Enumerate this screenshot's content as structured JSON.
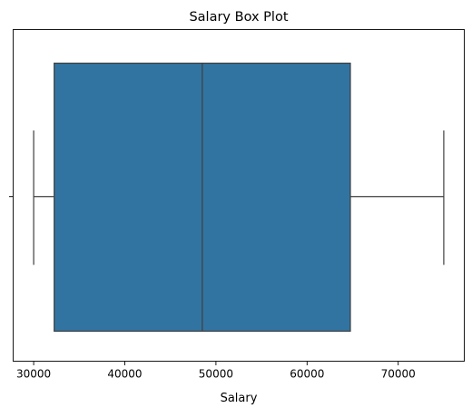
{
  "chart_data": {
    "type": "box",
    "title": "Salary Box Plot",
    "xlabel": "Salary",
    "ylabel": "",
    "orientation": "horizontal",
    "xlim": [
      27750,
      77250
    ],
    "xticks": [
      30000,
      40000,
      50000,
      60000,
      70000
    ],
    "tick_labels": [
      "30000",
      "40000",
      "50000",
      "60000",
      "70000"
    ],
    "series": [
      {
        "name": "Salary",
        "whisker_low": 30000,
        "q1": 32250,
        "median": 48500,
        "q3": 64750,
        "whisker_high": 75000
      }
    ],
    "box_color": "#3274a1",
    "line_color": "#3f3f3f",
    "grid": false
  }
}
